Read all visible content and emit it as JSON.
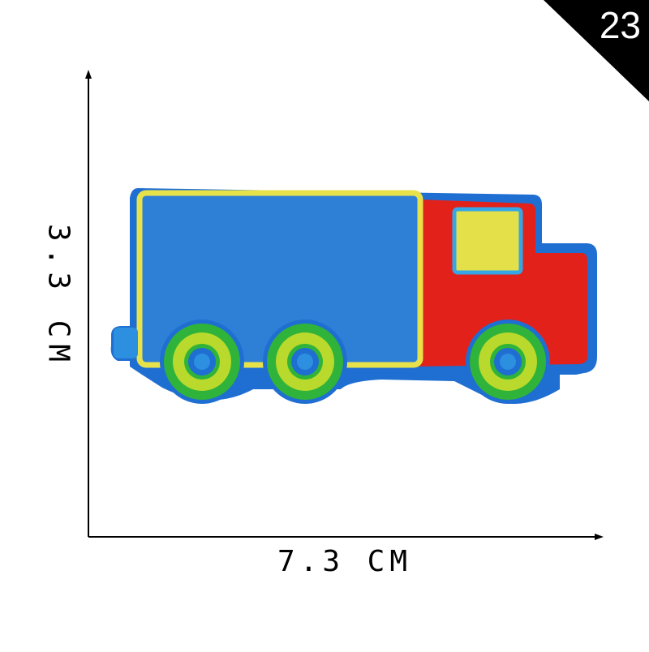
{
  "badge": {
    "text": "23",
    "color": "#000000"
  },
  "dimensions": {
    "width": "7.3 CM",
    "height": "3.3 CM"
  },
  "colors": {
    "cargo_box": "#2e7fd6",
    "cargo_border": "#e8e24a",
    "cab": "#e2211b",
    "window": "#e4e04a",
    "outline": "#1f6ed2",
    "wheel_outer": "#2fb33a",
    "wheel_mid": "#b9d92c",
    "wheel_hub": "#2d8fe0"
  }
}
